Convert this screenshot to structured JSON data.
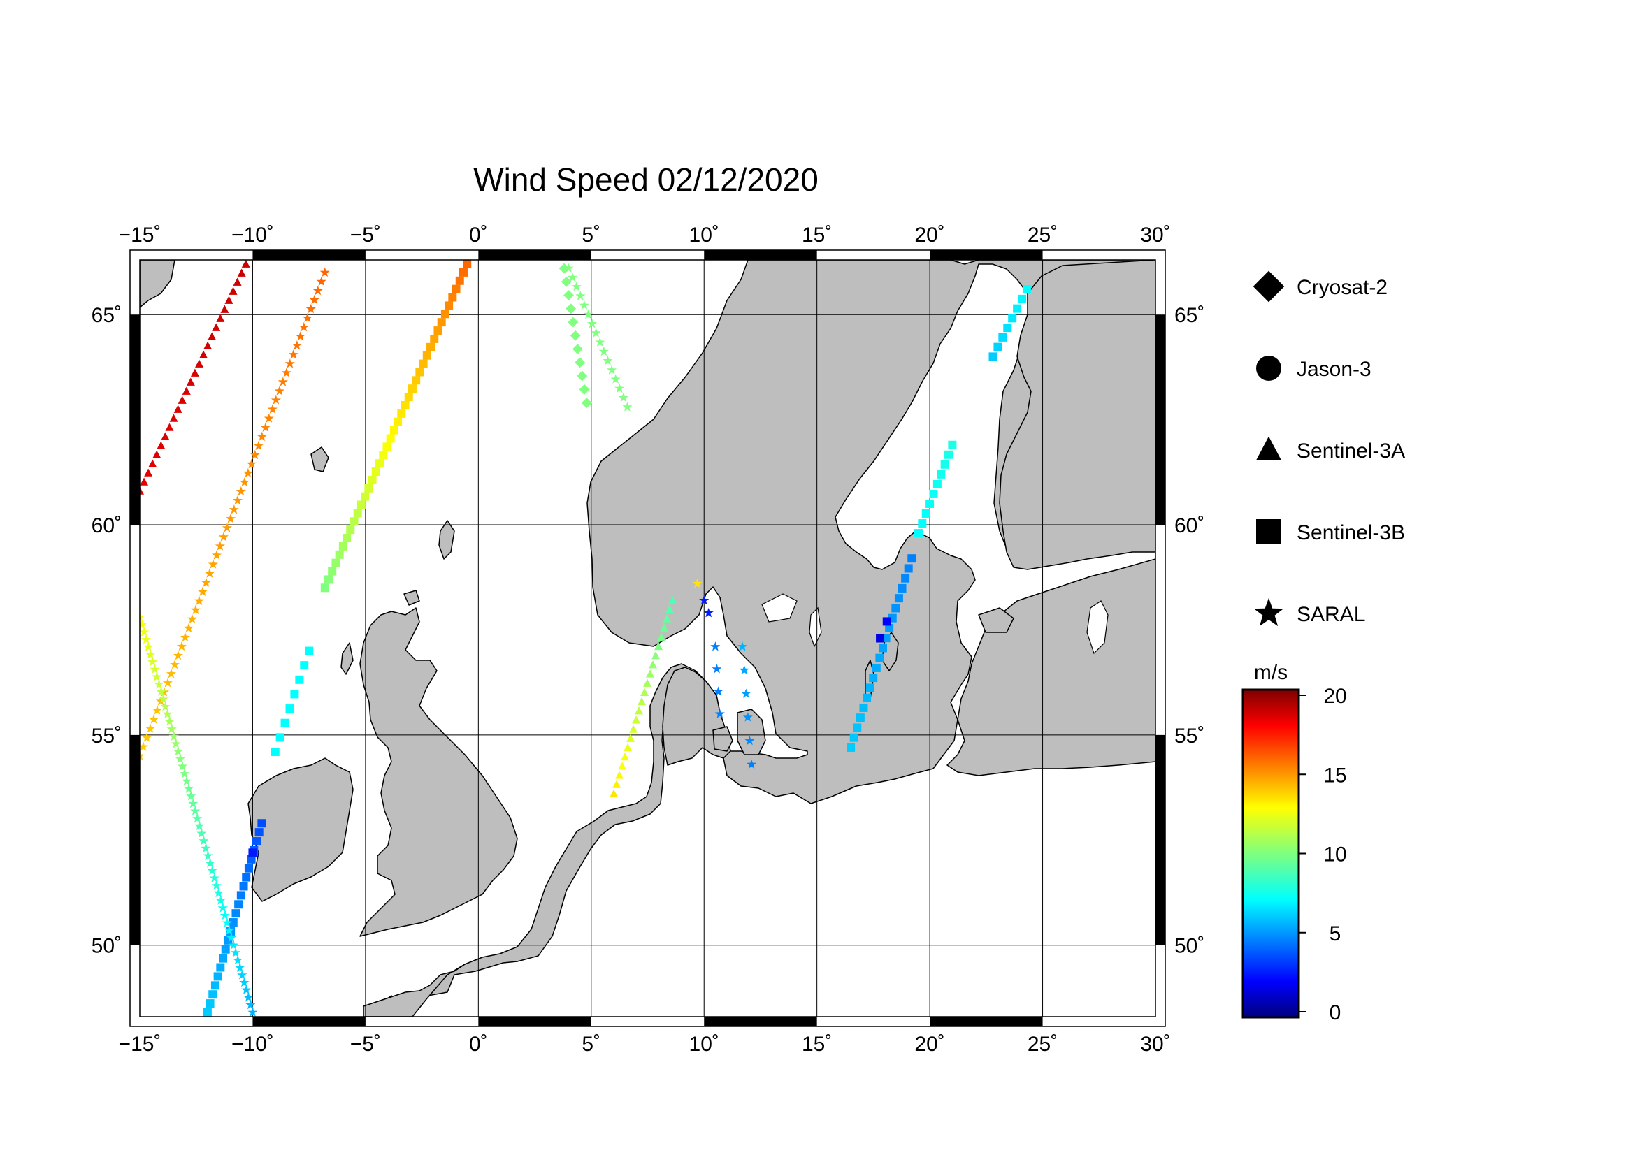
{
  "title": "Wind Speed 02/12/2020",
  "map": {
    "lon_range": [
      -15,
      30
    ],
    "lat_range": [
      48.3,
      66.3
    ],
    "lon_ticks": [
      -15,
      -10,
      -5,
      0,
      5,
      10,
      15,
      20,
      25,
      30
    ],
    "lat_ticks": [
      50,
      55,
      60,
      65
    ],
    "lon_tick_labels": [
      "−15˚",
      "−10˚",
      "−5˚",
      "0˚",
      "5˚",
      "10˚",
      "15˚",
      "20˚",
      "25˚",
      "30˚"
    ],
    "lat_tick_labels": [
      "50˚",
      "55˚",
      "60˚",
      "65˚"
    ],
    "land_color": "#bebebe",
    "sea_color": "#ffffff"
  },
  "legend": {
    "items": [
      {
        "label": "Cryosat-2",
        "symbol": "diamond"
      },
      {
        "label": "Jason-3",
        "symbol": "circle"
      },
      {
        "label": "Sentinel-3A",
        "symbol": "triangle"
      },
      {
        "label": "Sentinel-3B",
        "symbol": "square"
      },
      {
        "label": "SARAL",
        "symbol": "star"
      }
    ]
  },
  "colorbar": {
    "unit": "m/s",
    "range": [
      0,
      20
    ],
    "ticks": [
      0,
      5,
      10,
      15,
      20
    ],
    "tick_labels": [
      "0",
      "5",
      "10",
      "15",
      "20"
    ],
    "colormap": "jet"
  },
  "chart_data": {
    "type": "scatter",
    "title": "Wind Speed 02/12/2020",
    "x_quantity": "longitude",
    "y_quantity": "latitude",
    "color_quantity": "wind speed (m/s)",
    "xlim": [
      -15,
      30
    ],
    "ylim": [
      48.3,
      66.3
    ],
    "series": [
      {
        "name": "Sentinel-3A",
        "symbol": "triangle",
        "segments": [
          {
            "start": [
              -15.0,
              60.8
            ],
            "end": [
              -10.3,
              66.2
            ],
            "v0": 18,
            "v1": 18.5,
            "n": 26
          },
          {
            "start": [
              6.0,
              53.6
            ],
            "end": [
              8.6,
              58.2
            ],
            "v0": 13,
            "v1": 9,
            "n": 22
          }
        ]
      },
      {
        "name": "Sentinel-3B",
        "symbol": "square",
        "segments": [
          {
            "start": [
              -12.0,
              48.4
            ],
            "end": [
              -9.6,
              52.9
            ],
            "v0": 6.5,
            "v1": 4,
            "n": 22
          },
          {
            "start": [
              -9.0,
              54.6
            ],
            "end": [
              -7.5,
              57.0
            ],
            "v0": 7.5,
            "v1": 7.5,
            "n": 8
          },
          {
            "start": [
              -6.8,
              58.5
            ],
            "end": [
              -0.5,
              66.2
            ],
            "v0": 10,
            "v1": 15.5,
            "n": 40
          },
          {
            "start": [
              16.5,
              54.7
            ],
            "end": [
              19.2,
              59.2
            ],
            "v0": 6.5,
            "v1": 5,
            "n": 20
          },
          {
            "start": [
              19.5,
              59.8
            ],
            "end": [
              21.0,
              61.9
            ],
            "v0": 7.5,
            "v1": 8,
            "n": 10
          },
          {
            "start": [
              22.8,
              64.0
            ],
            "end": [
              24.3,
              65.6
            ],
            "v0": 6.5,
            "v1": 7.5,
            "n": 8
          }
        ]
      },
      {
        "name": "SARAL",
        "symbol": "star",
        "segments": [
          {
            "start": [
              -15.0,
              54.5
            ],
            "end": [
              -6.8,
              66.0
            ],
            "v0": 13.5,
            "v1": 15.5,
            "n": 54
          },
          {
            "start": [
              -15.0,
              57.8
            ],
            "end": [
              -10.0,
              48.4
            ],
            "v0": 12.5,
            "v1": 6,
            "n": 54
          },
          {
            "start": [
              4.0,
              66.1
            ],
            "end": [
              6.6,
              62.8
            ],
            "v0": 10,
            "v1": 10,
            "n": 16
          },
          {
            "start": [
              10.0,
              58.2
            ],
            "end": [
              10.2,
              57.9
            ],
            "v0": 3,
            "v1": 3,
            "n": 2
          },
          {
            "start": [
              10.5,
              57.1
            ],
            "end": [
              10.7,
              55.5
            ],
            "v0": 5,
            "v1": 5,
            "n": 4
          },
          {
            "start": [
              11.7,
              57.1
            ],
            "end": [
              12.1,
              54.3
            ],
            "v0": 6,
            "v1": 5,
            "n": 6
          }
        ]
      },
      {
        "name": "Cryosat-2",
        "symbol": "diamond",
        "segments": [
          {
            "start": [
              3.8,
              66.1
            ],
            "end": [
              4.8,
              62.9
            ],
            "v0": 10,
            "v1": 10,
            "n": 11
          }
        ]
      }
    ],
    "points": [
      {
        "series": "SARAL",
        "lon": 9.7,
        "lat": 58.6,
        "v": 13
      },
      {
        "series": "Sentinel-3B",
        "lon": 17.8,
        "lat": 57.3,
        "v": 2
      },
      {
        "series": "Sentinel-3B",
        "lon": 18.1,
        "lat": 57.7,
        "v": 2.5
      },
      {
        "series": "Sentinel-3B",
        "lon": -10.0,
        "lat": 52.2,
        "v": 3
      }
    ]
  }
}
